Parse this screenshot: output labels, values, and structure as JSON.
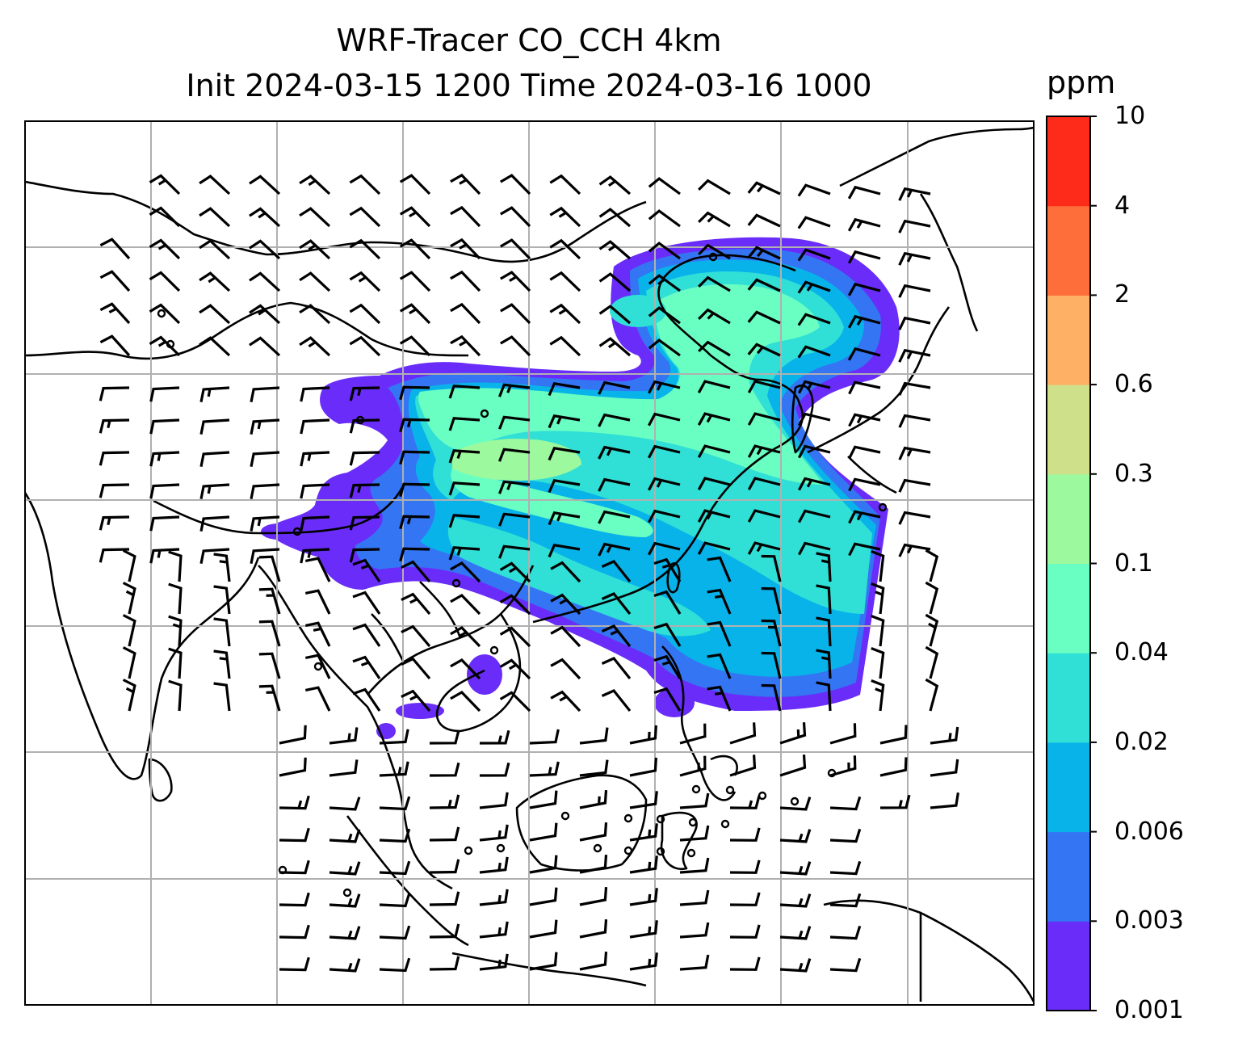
{
  "title": {
    "line1": "WRF-Tracer CO_CCH 4km",
    "line2": "Init 2024-03-15 1200 Time 2024-03-16 1000"
  },
  "colorbar": {
    "unit": "ppm",
    "levels": [
      "0.001",
      "0.003",
      "0.006",
      "0.02",
      "0.04",
      "0.1",
      "0.3",
      "0.6",
      "2",
      "4",
      "10"
    ],
    "colors": [
      "#6a2cf8",
      "#3475f3",
      "#08b3ea",
      "#30dfd6",
      "#6affc2",
      "#9cf99d",
      "#cfe08a",
      "#feb065",
      "#fe6e3a",
      "#fe2a1a"
    ]
  },
  "map": {
    "gridlines": true,
    "land_fill": "none",
    "coastline_color": "#000000",
    "overlay": "wind barbs"
  }
}
